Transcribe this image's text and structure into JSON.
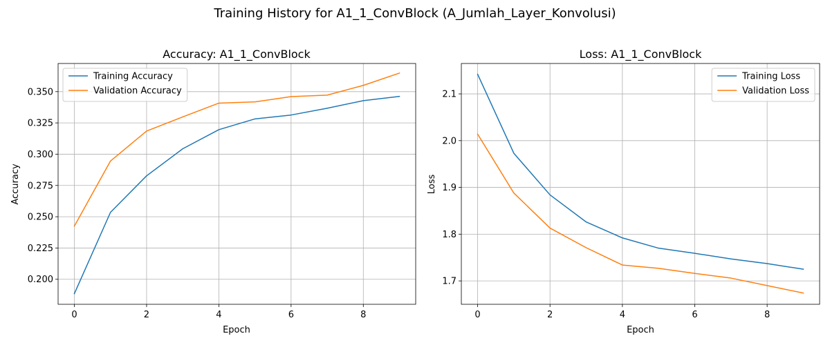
{
  "figure": {
    "title": "Training History for A1_1_ConvBlock (A_Jumlah_Layer_Konvolusi)"
  },
  "chart_data": [
    {
      "type": "line",
      "title": "Accuracy: A1_1_ConvBlock",
      "xlabel": "Epoch",
      "ylabel": "Accuracy",
      "x": [
        0,
        1,
        2,
        3,
        4,
        5,
        6,
        7,
        8,
        9
      ],
      "xlim": [
        -0.45,
        9.45
      ],
      "ylim": [
        0.18,
        0.3725
      ],
      "xticks": [
        0,
        2,
        4,
        6,
        8
      ],
      "xtick_labels": [
        "0",
        "2",
        "4",
        "6",
        "8"
      ],
      "yticks": [
        0.2,
        0.225,
        0.25,
        0.275,
        0.3,
        0.325,
        0.35
      ],
      "ytick_labels": [
        "0.200",
        "0.225",
        "0.250",
        "0.275",
        "0.300",
        "0.325",
        "0.350"
      ],
      "grid": true,
      "legend_position": "upper left",
      "series": [
        {
          "name": "Training Accuracy",
          "color": "#1f77b4",
          "values": [
            0.1885,
            0.2535,
            0.2827,
            0.3043,
            0.3196,
            0.3282,
            0.3313,
            0.3367,
            0.3428,
            0.3462
          ]
        },
        {
          "name": "Validation Accuracy",
          "color": "#ff7f0e",
          "values": [
            0.2425,
            0.2945,
            0.3185,
            0.3298,
            0.3408,
            0.3418,
            0.346,
            0.3472,
            0.355,
            0.3648
          ]
        }
      ]
    },
    {
      "type": "line",
      "title": "Loss: A1_1_ConvBlock",
      "xlabel": "Epoch",
      "ylabel": "Loss",
      "x": [
        0,
        1,
        2,
        3,
        4,
        5,
        6,
        7,
        8,
        9
      ],
      "xlim": [
        -0.45,
        9.45
      ],
      "ylim": [
        1.65,
        2.165
      ],
      "xticks": [
        0,
        2,
        4,
        6,
        8
      ],
      "xtick_labels": [
        "0",
        "2",
        "4",
        "6",
        "8"
      ],
      "yticks": [
        1.7,
        1.8,
        1.9,
        2.0,
        2.1
      ],
      "ytick_labels": [
        "1.7",
        "1.8",
        "1.9",
        "2.0",
        "2.1"
      ],
      "grid": true,
      "legend_position": "upper right",
      "series": [
        {
          "name": "Training Loss",
          "color": "#1f77b4",
          "values": [
            2.142,
            1.973,
            1.884,
            1.826,
            1.792,
            1.77,
            1.759,
            1.747,
            1.737,
            1.725
          ]
        },
        {
          "name": "Validation Loss",
          "color": "#ff7f0e",
          "values": [
            2.014,
            1.888,
            1.813,
            1.771,
            1.734,
            1.727,
            1.716,
            1.706,
            1.69,
            1.674
          ]
        }
      ]
    }
  ]
}
